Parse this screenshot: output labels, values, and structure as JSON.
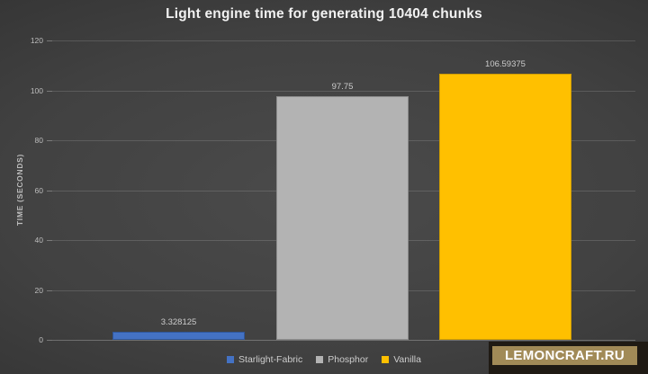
{
  "chart_data": {
    "type": "bar",
    "title": "Light engine time for generating 10404 chunks",
    "xlabel": "",
    "ylabel": "TIME (SECONDS)",
    "categories": [
      "Starlight-Fabric",
      "Phosphor",
      "Vanilla"
    ],
    "series": [
      {
        "name": "Starlight-Fabric",
        "value": 3.328125,
        "value_label": "3.328125",
        "color": "#4472c4",
        "border": "#2f5597"
      },
      {
        "name": "Phosphor",
        "value": 97.75,
        "value_label": "97.75",
        "color": "#b3b3b3",
        "border": "#8c8c8c"
      },
      {
        "name": "Vanilla",
        "value": 106.59375,
        "value_label": "106.59375",
        "color": "#ffc000",
        "border": "#cf9d00"
      }
    ],
    "ylim": [
      0,
      120
    ],
    "yticks": [
      0,
      20,
      40,
      60,
      80,
      100,
      120
    ],
    "grid": true,
    "legend_position": "bottom-center"
  },
  "watermark": {
    "text": "LEMONCRAFT.RU",
    "badge_color": "#a18a57",
    "text_color": "#ffffff",
    "backdrop_color": "#1f1a14"
  },
  "theme": {
    "background_center": "#4b4b4b",
    "background_edge": "#262626",
    "gridline": "rgba(255,255,255,0.14)",
    "axis_text": "#bdbdbd",
    "label_text": "#cccccc",
    "title_text": "#f2f2f2"
  }
}
